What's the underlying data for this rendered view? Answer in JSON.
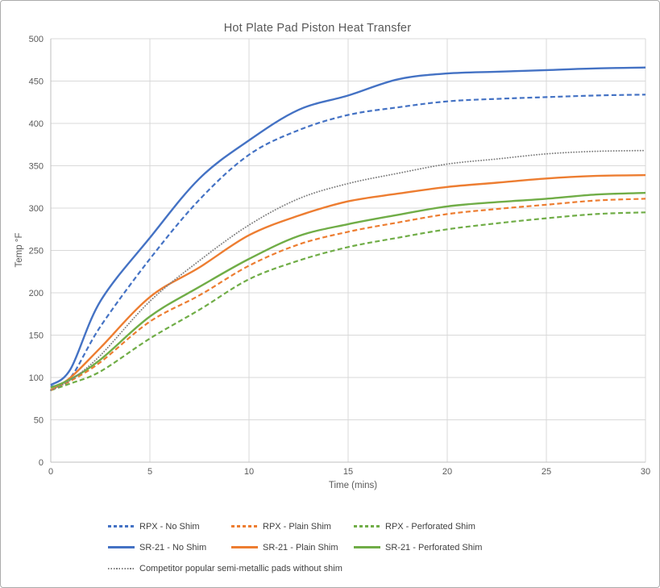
{
  "chart_data": {
    "type": "line",
    "title": "Hot Plate Pad Piston Heat Transfer",
    "xlabel": "Time (mins)",
    "ylabel": "Temp °F",
    "xlim": [
      0,
      30
    ],
    "ylim": [
      0,
      500
    ],
    "x_ticks": [
      0,
      5,
      10,
      15,
      20,
      25,
      30
    ],
    "y_ticks": [
      0,
      50,
      100,
      150,
      200,
      250,
      300,
      350,
      400,
      450,
      500
    ],
    "grid": true,
    "legend_position": "bottom",
    "grid_color": "#d9d9d9",
    "axis_line_color": "#bfbfbf",
    "tick_label_color": "#595959",
    "title_color": "#595959",
    "legend_text_color": "#404040",
    "x": [
      0,
      1,
      2.5,
      5,
      7.5,
      10,
      12.5,
      15,
      17.5,
      20,
      22.5,
      25,
      27.5,
      30
    ],
    "series": [
      {
        "name": "RPX - No Shim",
        "color": "#4472C4",
        "style": "dashed",
        "legend_row": 0,
        "legend_col": 0,
        "values": [
          89,
          100,
          160,
          240,
          310,
          363,
          392,
          410,
          419,
          426,
          429,
          431,
          433,
          434
        ]
      },
      {
        "name": "RPX - Plain Shim",
        "color": "#ED7D31",
        "style": "dashed",
        "legend_row": 0,
        "legend_col": 1,
        "values": [
          85,
          96,
          118,
          166,
          197,
          232,
          257,
          272,
          283,
          293,
          299,
          304,
          309,
          311
        ]
      },
      {
        "name": "RPX - Perforated Shim",
        "color": "#70AD47",
        "style": "dashed",
        "legend_row": 0,
        "legend_col": 2,
        "values": [
          85,
          93,
          107,
          146,
          180,
          216,
          238,
          254,
          265,
          275,
          282,
          288,
          293,
          295
        ]
      },
      {
        "name": "SR-21 - No Shim",
        "color": "#4472C4",
        "style": "solid",
        "legend_row": 1,
        "legend_col": 0,
        "values": [
          91,
          110,
          190,
          265,
          335,
          380,
          416,
          433,
          452,
          459,
          461,
          463,
          465,
          466
        ]
      },
      {
        "name": "SR-21 - Plain Shim",
        "color": "#ED7D31",
        "style": "solid",
        "legend_row": 1,
        "legend_col": 1,
        "values": [
          85,
          100,
          135,
          195,
          230,
          268,
          291,
          308,
          317,
          325,
          330,
          335,
          338,
          339
        ]
      },
      {
        "name": "SR-21 - Perforated Shim",
        "color": "#70AD47",
        "style": "solid",
        "legend_row": 1,
        "legend_col": 2,
        "values": [
          88,
          98,
          121,
          172,
          207,
          240,
          267,
          281,
          292,
          302,
          307,
          311,
          316,
          318
        ]
      },
      {
        "name": "Competitor popular semi-metallic pads without shim",
        "color": "#7F7F7F",
        "style": "dotted",
        "legend_row": 2,
        "legend_col": 0,
        "values": [
          85,
          97,
          126,
          190,
          238,
          280,
          311,
          329,
          341,
          352,
          358,
          364,
          367,
          368
        ]
      }
    ]
  }
}
